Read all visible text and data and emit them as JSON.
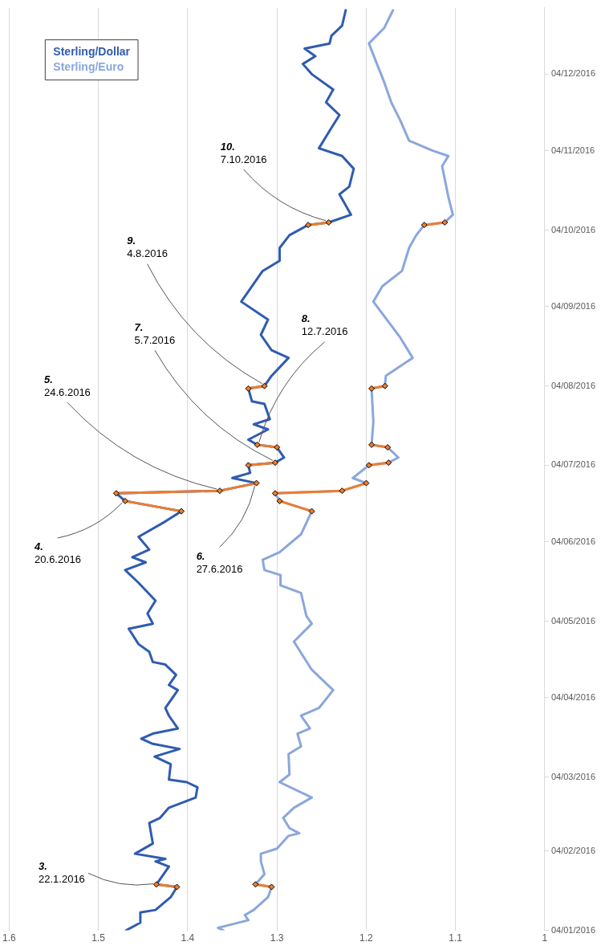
{
  "chart_data": {
    "type": "line",
    "orientation": "horizontal",
    "ylim": [
      "2016-01-04",
      "2016-12-30"
    ],
    "yticks": [
      {
        "value": "2016-01-04",
        "label": "04/01/2016"
      },
      {
        "value": "2016-02-04",
        "label": "04/02/2016"
      },
      {
        "value": "2016-03-04",
        "label": "04/03/2016"
      },
      {
        "value": "2016-04-04",
        "label": "04/04/2016"
      },
      {
        "value": "2016-05-04",
        "label": "04/05/2016"
      },
      {
        "value": "2016-06-04",
        "label": "04/06/2016"
      },
      {
        "value": "2016-07-04",
        "label": "04/07/2016"
      },
      {
        "value": "2016-08-04",
        "label": "04/08/2016"
      },
      {
        "value": "2016-09-04",
        "label": "04/09/2016"
      },
      {
        "value": "2016-10-04",
        "label": "04/10/2016"
      },
      {
        "value": "2016-11-04",
        "label": "04/11/2016"
      },
      {
        "value": "2016-12-04",
        "label": "04/12/2016"
      }
    ],
    "xlim": [
      1.6,
      1
    ],
    "xticks": [
      1.6,
      1.5,
      1.4,
      1.3,
      1.2,
      1.1,
      1
    ],
    "grid": "x",
    "legend": "top left",
    "marker": "none",
    "line_style": "solid",
    "series": [
      {
        "name": "Sterling/Dollar",
        "color": "#2f5cb0",
        "x": [
          "2016-01-04",
          "2016-01-07",
          "2016-01-11",
          "2016-01-12",
          "2016-01-17",
          "2016-01-21",
          "2016-01-22",
          "2016-01-29",
          "2016-01-31",
          "2016-02-01",
          "2016-02-03",
          "2016-02-07",
          "2016-02-15",
          "2016-02-17",
          "2016-02-21",
          "2016-02-25",
          "2016-02-29",
          "2016-03-02",
          "2016-03-03",
          "2016-03-09",
          "2016-03-12",
          "2016-03-15",
          "2016-03-17",
          "2016-03-19",
          "2016-03-21",
          "2016-03-23",
          "2016-03-28",
          "2016-03-31",
          "2016-04-03",
          "2016-04-07",
          "2016-04-09",
          "2016-04-13",
          "2016-04-17",
          "2016-04-18",
          "2016-04-22",
          "2016-04-25",
          "2016-05-01",
          "2016-05-03",
          "2016-05-07",
          "2016-05-12",
          "2016-05-19",
          "2016-05-24",
          "2016-05-27",
          "2016-05-29",
          "2016-06-01",
          "2016-06-06",
          "2016-06-12",
          "2016-06-16",
          "2016-06-20",
          "2016-06-23",
          "2016-06-24",
          "2016-06-27",
          "2016-06-29",
          "2016-07-01",
          "2016-07-04",
          "2016-07-05",
          "2016-07-07",
          "2016-07-11",
          "2016-07-12",
          "2016-07-14",
          "2016-07-18",
          "2016-07-20",
          "2016-07-22",
          "2016-07-28",
          "2016-07-29",
          "2016-08-03",
          "2016-08-04",
          "2016-08-08",
          "2016-08-15",
          "2016-08-18",
          "2016-08-24",
          "2016-08-30",
          "2016-09-06",
          "2016-09-18",
          "2016-09-22",
          "2016-09-27",
          "2016-10-02",
          "2016-10-06",
          "2016-10-07",
          "2016-10-10",
          "2016-10-18",
          "2016-10-21",
          "2016-10-28",
          "2016-11-02",
          "2016-11-05",
          "2016-11-13",
          "2016-11-18",
          "2016-11-23",
          "2016-11-28",
          "2016-12-04",
          "2016-12-08",
          "2016-12-11",
          "2016-12-14",
          "2016-12-16",
          "2016-12-19",
          "2016-12-23",
          "2016-12-29"
        ],
        "values": [
          1.469,
          1.453,
          1.453,
          1.436,
          1.419,
          1.412,
          1.435,
          1.421,
          1.436,
          1.425,
          1.459,
          1.439,
          1.443,
          1.431,
          1.421,
          1.391,
          1.389,
          1.401,
          1.421,
          1.419,
          1.437,
          1.409,
          1.439,
          1.452,
          1.439,
          1.411,
          1.421,
          1.425,
          1.419,
          1.411,
          1.421,
          1.413,
          1.425,
          1.439,
          1.443,
          1.455,
          1.466,
          1.439,
          1.445,
          1.436,
          1.455,
          1.47,
          1.447,
          1.462,
          1.443,
          1.455,
          1.425,
          1.407,
          1.47,
          1.48,
          1.364,
          1.323,
          1.35,
          1.33,
          1.332,
          1.302,
          1.292,
          1.3,
          1.322,
          1.332,
          1.31,
          1.326,
          1.308,
          1.314,
          1.328,
          1.332,
          1.314,
          1.306,
          1.287,
          1.306,
          1.318,
          1.31,
          1.34,
          1.316,
          1.297,
          1.297,
          1.286,
          1.265,
          1.242,
          1.217,
          1.23,
          1.219,
          1.214,
          1.227,
          1.253,
          1.239,
          1.23,
          1.245,
          1.237,
          1.261,
          1.271,
          1.257,
          1.269,
          1.241,
          1.239,
          1.227,
          1.223
        ]
      },
      {
        "name": "Sterling/Euro",
        "color": "#8aa7dc",
        "x": [
          "2016-01-04",
          "2016-01-05",
          "2016-01-08",
          "2016-01-10",
          "2016-01-12",
          "2016-01-17",
          "2016-01-21",
          "2016-01-22",
          "2016-01-26",
          "2016-01-31",
          "2016-02-03",
          "2016-02-05",
          "2016-02-10",
          "2016-02-11",
          "2016-02-13",
          "2016-02-17",
          "2016-02-21",
          "2016-02-25",
          "2016-03-02",
          "2016-03-05",
          "2016-03-13",
          "2016-03-16",
          "2016-03-21",
          "2016-03-23",
          "2016-03-28",
          "2016-03-31",
          "2016-04-07",
          "2016-04-09",
          "2016-04-15",
          "2016-04-26",
          "2016-05-03",
          "2016-05-06",
          "2016-05-15",
          "2016-05-18",
          "2016-05-22",
          "2016-05-24",
          "2016-05-28",
          "2016-05-31",
          "2016-06-07",
          "2016-06-16",
          "2016-06-20",
          "2016-06-23",
          "2016-06-24",
          "2016-06-27",
          "2016-06-29",
          "2016-07-04",
          "2016-07-05",
          "2016-07-07",
          "2016-07-11",
          "2016-07-12",
          "2016-07-21",
          "2016-08-03",
          "2016-08-04",
          "2016-08-08",
          "2016-08-15",
          "2016-08-23",
          "2016-09-06",
          "2016-09-12",
          "2016-09-18",
          "2016-09-27",
          "2016-10-02",
          "2016-10-06",
          "2016-10-07",
          "2016-10-10",
          "2016-10-17",
          "2016-10-29",
          "2016-11-02",
          "2016-11-04",
          "2016-11-08",
          "2016-11-16",
          "2016-11-23",
          "2016-12-01",
          "2016-12-08",
          "2016-12-16",
          "2016-12-22",
          "2016-12-29"
        ],
        "values": [
          1.36,
          1.366,
          1.332,
          1.336,
          1.326,
          1.31,
          1.306,
          1.324,
          1.314,
          1.318,
          1.318,
          1.3,
          1.287,
          1.275,
          1.286,
          1.293,
          1.281,
          1.261,
          1.297,
          1.286,
          1.287,
          1.273,
          1.277,
          1.263,
          1.273,
          1.253,
          1.237,
          1.243,
          1.261,
          1.281,
          1.261,
          1.267,
          1.273,
          1.296,
          1.296,
          1.314,
          1.316,
          1.297,
          1.273,
          1.261,
          1.297,
          1.302,
          1.227,
          1.2,
          1.215,
          1.197,
          1.175,
          1.164,
          1.176,
          1.194,
          1.192,
          1.194,
          1.179,
          1.178,
          1.148,
          1.162,
          1.192,
          1.182,
          1.16,
          1.152,
          1.144,
          1.135,
          1.112,
          1.103,
          1.108,
          1.115,
          1.108,
          1.125,
          1.152,
          1.162,
          1.172,
          1.18,
          1.188,
          1.197,
          1.18,
          1.17
        ]
      },
      {
        "color": "#ed7d31",
        "marker": "diamond",
        "x": [
          "2016-01-21",
          "2016-01-22",
          "2016-03-01",
          "2016-06-16",
          "2016-06-20",
          "2016-06-21",
          "2016-06-23",
          "2016-06-24",
          "2016-06-27",
          "2016-07-01",
          "2016-07-04",
          "2016-07-05",
          "2016-07-08",
          "2016-07-11",
          "2016-07-12",
          "2016-07-20",
          "2016-08-03",
          "2016-08-04",
          "2016-09-01",
          "2016-10-06",
          "2016-10-07"
        ],
        "values": [
          1.412,
          1.435,
          null,
          1.407,
          1.47,
          null,
          1.48,
          1.364,
          1.323,
          null,
          1.332,
          1.302,
          null,
          1.3,
          1.322,
          null,
          1.332,
          1.314,
          null,
          1.265,
          1.242
        ]
      },
      {
        "color": "#ed7d31",
        "marker": "diamond",
        "x": [
          "2016-01-21",
          "2016-01-22",
          "2016-03-01",
          "2016-06-16",
          "2016-06-20",
          "2016-06-21",
          "2016-06-23",
          "2016-06-24",
          "2016-06-27",
          "2016-07-01",
          "2016-07-04",
          "2016-07-05",
          "2016-07-08",
          "2016-07-11",
          "2016-07-12",
          "2016-07-20",
          "2016-08-03",
          "2016-08-04",
          "2016-09-01",
          "2016-10-06",
          "2016-10-07"
        ],
        "values": [
          1.306,
          1.324,
          null,
          1.261,
          1.297,
          null,
          1.302,
          1.227,
          1.2,
          null,
          1.197,
          1.175,
          null,
          1.176,
          1.194,
          null,
          1.194,
          1.179,
          null,
          1.135,
          1.112
        ]
      }
    ],
    "annotations": [
      {
        "text": "3.\n22.1.2016",
        "x": 1.435,
        "y": "2016-01-22"
      },
      {
        "text": "4.\n20.6.2016",
        "x": 1.47,
        "y": "2016-06-20"
      },
      {
        "text": "5.\n24.6.2016",
        "x": 1.364,
        "y": "2016-06-24"
      },
      {
        "text": "6.\n27.6.2016",
        "x": 1.323,
        "y": "2016-06-27"
      },
      {
        "text": "7.\n5.7.2016",
        "x": 1.302,
        "y": "2016-07-05"
      },
      {
        "text": "8.\n12.7.2016",
        "x": 1.322,
        "y": "2016-07-12"
      },
      {
        "text": "9.\n4.8.2016",
        "x": 1.314,
        "y": "2016-08-04"
      },
      {
        "text": "10.\n7.10.2016",
        "x": 1.242,
        "y": "2016-10-07"
      }
    ]
  }
}
